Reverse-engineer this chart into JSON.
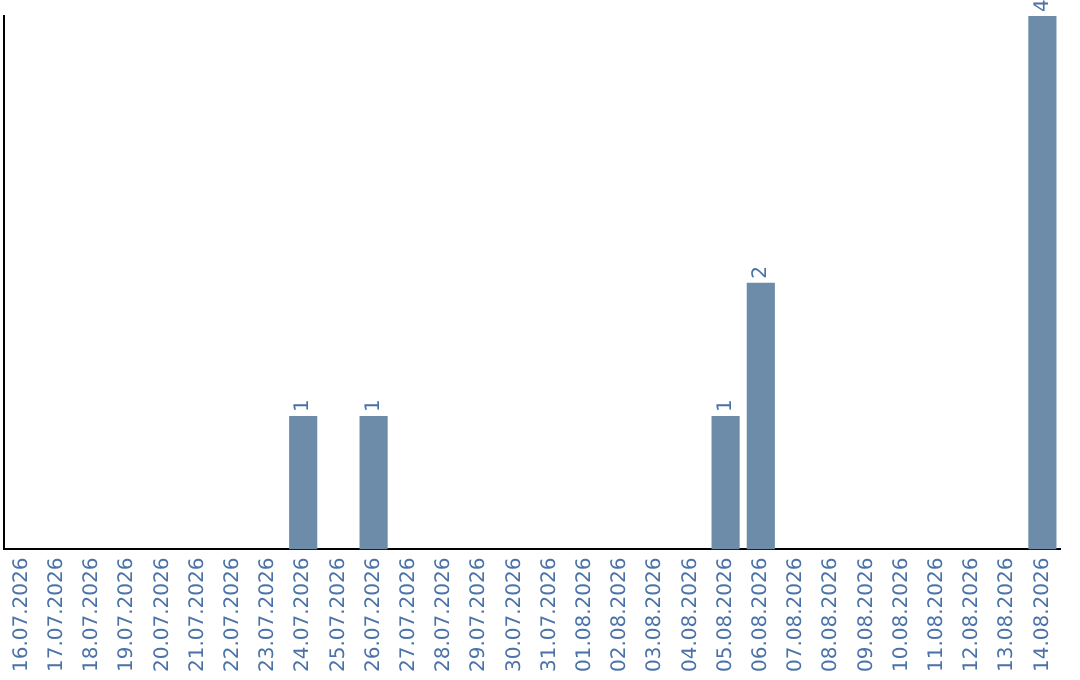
{
  "chart_data": {
    "type": "bar",
    "categories": [
      "16.07.2026",
      "17.07.2026",
      "18.07.2026",
      "19.07.2026",
      "20.07.2026",
      "21.07.2026",
      "22.07.2026",
      "23.07.2026",
      "24.07.2026",
      "25.07.2026",
      "26.07.2026",
      "27.07.2026",
      "28.07.2026",
      "29.07.2026",
      "30.07.2026",
      "31.07.2026",
      "01.08.2026",
      "02.08.2026",
      "03.08.2026",
      "04.08.2026",
      "05.08.2026",
      "06.08.2026",
      "07.08.2026",
      "08.08.2026",
      "09.08.2026",
      "10.08.2026",
      "11.08.2026",
      "12.08.2026",
      "13.08.2026",
      "14.08.2026"
    ],
    "values": [
      0,
      0,
      0,
      0,
      0,
      0,
      0,
      0,
      1,
      0,
      1,
      0,
      0,
      0,
      0,
      0,
      0,
      0,
      0,
      0,
      1,
      2,
      0,
      0,
      0,
      0,
      0,
      0,
      0,
      4
    ],
    "value_labels": [
      null,
      null,
      null,
      null,
      null,
      null,
      null,
      null,
      "1",
      null,
      "1",
      null,
      null,
      null,
      null,
      null,
      null,
      null,
      null,
      null,
      "1",
      "2",
      null,
      null,
      null,
      null,
      null,
      null,
      null,
      "4"
    ],
    "color": "#6d8ca9",
    "tick_labels": "x"
  }
}
